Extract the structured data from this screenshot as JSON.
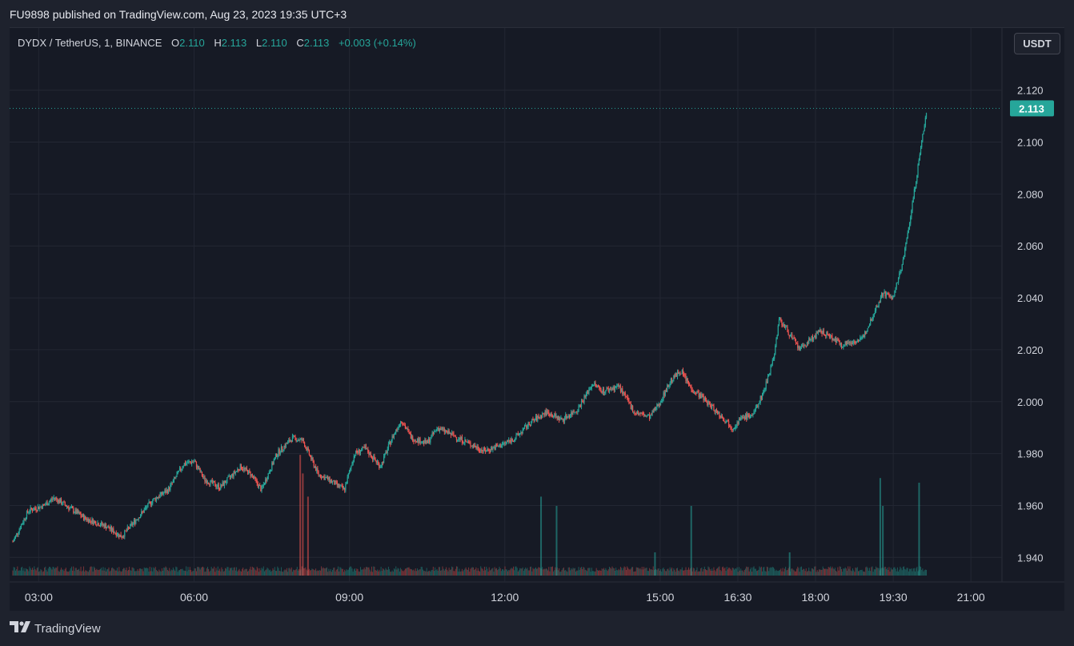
{
  "header": {
    "published": "FU9898 published on TradingView.com, Aug 23, 2023 19:35 UTC+3"
  },
  "legend": {
    "symbol": "DYDX / TetherUS, 1, BINANCE",
    "o_label": "O",
    "o": "2.110",
    "h_label": "H",
    "h": "2.113",
    "l_label": "L",
    "l": "2.110",
    "c_label": "C",
    "c": "2.113",
    "change": "+0.003 (+0.14%)"
  },
  "currency_button": "USDT",
  "footer": {
    "brand": "TradingView"
  },
  "colors": {
    "up": "#26a69a",
    "down": "#ef5350",
    "background": "#161a25",
    "grid": "#2a2e39",
    "text": "#d1d4dc"
  },
  "chart_data": {
    "type": "candlestick",
    "yticks": [
      "2.120",
      "2.100",
      "2.080",
      "2.060",
      "2.040",
      "2.020",
      "2.000",
      "1.980",
      "1.960",
      "1.940"
    ],
    "ylim": [
      1.933,
      2.127
    ],
    "xticks": [
      "03:00",
      "06:00",
      "09:00",
      "12:00",
      "15:00",
      "16:30",
      "18:00",
      "19:30",
      "21:00"
    ],
    "xtick_hours": [
      3,
      6,
      9,
      12,
      15,
      16.5,
      18,
      19.5,
      21
    ],
    "x_range_hours": [
      2.5,
      21.6
    ],
    "last_price": "2.113",
    "close_path": [
      [
        2.5,
        1.946
      ],
      [
        2.8,
        1.958
      ],
      [
        3.1,
        1.96
      ],
      [
        3.3,
        1.963
      ],
      [
        3.6,
        1.959
      ],
      [
        3.9,
        1.955
      ],
      [
        4.3,
        1.952
      ],
      [
        4.6,
        1.948
      ],
      [
        4.9,
        1.955
      ],
      [
        5.2,
        1.962
      ],
      [
        5.5,
        1.966
      ],
      [
        5.8,
        1.976
      ],
      [
        6.0,
        1.977
      ],
      [
        6.2,
        1.97
      ],
      [
        6.5,
        1.967
      ],
      [
        6.9,
        1.975
      ],
      [
        7.1,
        1.972
      ],
      [
        7.3,
        1.966
      ],
      [
        7.6,
        1.98
      ],
      [
        7.9,
        1.986
      ],
      [
        8.1,
        1.985
      ],
      [
        8.4,
        1.972
      ],
      [
        8.6,
        1.97
      ],
      [
        8.9,
        1.966
      ],
      [
        9.1,
        1.98
      ],
      [
        9.3,
        1.982
      ],
      [
        9.6,
        1.975
      ],
      [
        9.8,
        1.985
      ],
      [
        10.0,
        1.993
      ],
      [
        10.2,
        1.986
      ],
      [
        10.5,
        1.984
      ],
      [
        10.7,
        1.99
      ],
      [
        11.0,
        1.987
      ],
      [
        11.3,
        1.984
      ],
      [
        11.6,
        1.981
      ],
      [
        11.9,
        1.983
      ],
      [
        12.2,
        1.986
      ],
      [
        12.5,
        1.992
      ],
      [
        12.8,
        1.996
      ],
      [
        13.1,
        1.993
      ],
      [
        13.4,
        1.997
      ],
      [
        13.7,
        2.007
      ],
      [
        13.9,
        2.004
      ],
      [
        14.2,
        2.006
      ],
      [
        14.5,
        1.996
      ],
      [
        14.8,
        1.994
      ],
      [
        15.0,
        2.0
      ],
      [
        15.2,
        2.008
      ],
      [
        15.4,
        2.012
      ],
      [
        15.6,
        2.005
      ],
      [
        15.8,
        2.002
      ],
      [
        16.0,
        1.998
      ],
      [
        16.2,
        1.994
      ],
      [
        16.4,
        1.99
      ],
      [
        16.6,
        1.994
      ],
      [
        16.8,
        1.995
      ],
      [
        17.0,
        2.004
      ],
      [
        17.2,
        2.018
      ],
      [
        17.3,
        2.032
      ],
      [
        17.5,
        2.026
      ],
      [
        17.7,
        2.02
      ],
      [
        17.9,
        2.024
      ],
      [
        18.1,
        2.027
      ],
      [
        18.3,
        2.025
      ],
      [
        18.5,
        2.022
      ],
      [
        18.7,
        2.023
      ],
      [
        18.9,
        2.024
      ],
      [
        19.1,
        2.033
      ],
      [
        19.3,
        2.042
      ],
      [
        19.5,
        2.04
      ],
      [
        19.7,
        2.055
      ],
      [
        19.9,
        2.08
      ],
      [
        20.05,
        2.1
      ],
      [
        20.15,
        2.113
      ]
    ],
    "volume_spikes": [
      [
        8.05,
        0.26
      ],
      [
        8.1,
        0.22
      ],
      [
        8.2,
        0.17
      ],
      [
        12.7,
        0.17
      ],
      [
        13.0,
        0.15
      ],
      [
        14.9,
        0.05
      ],
      [
        15.6,
        0.15
      ],
      [
        17.5,
        0.05
      ],
      [
        19.25,
        0.21
      ],
      [
        19.3,
        0.15
      ],
      [
        20.0,
        0.2
      ]
    ]
  }
}
